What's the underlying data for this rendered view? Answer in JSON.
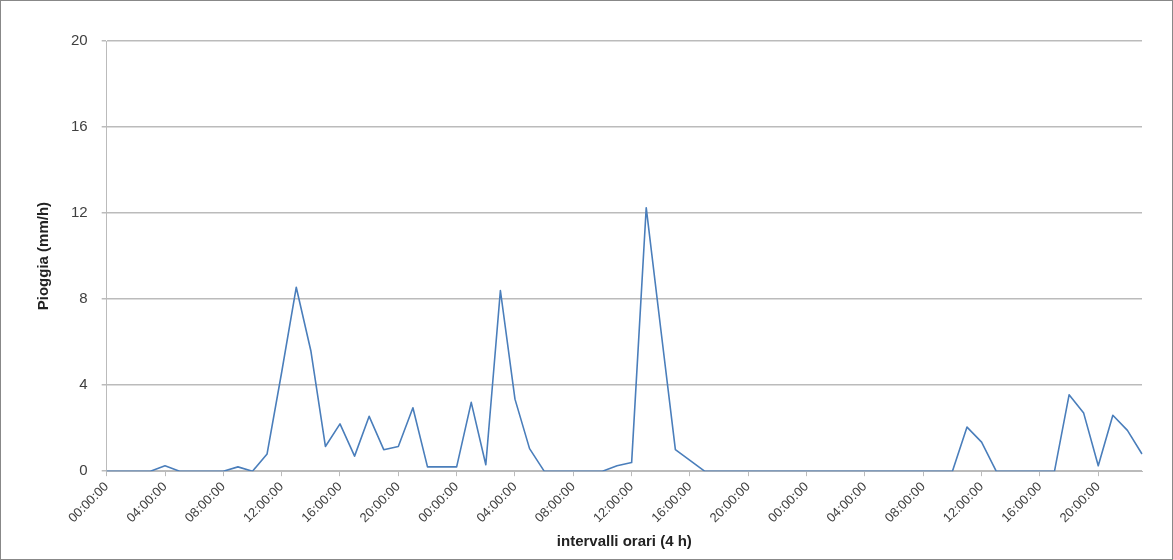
{
  "chart_data": {
    "type": "line",
    "xlabel": "intervalli orari (4 h)",
    "ylabel": "Pioggia (mm/h)",
    "categories": [
      "00:00:00",
      null,
      null,
      null,
      "04:00:00",
      null,
      null,
      null,
      "08:00:00",
      null,
      null,
      null,
      "12:00:00",
      null,
      null,
      null,
      "16:00:00",
      null,
      null,
      null,
      "20:00:00",
      null,
      null,
      null,
      "00:00:00",
      null,
      null,
      null,
      "04:00:00",
      null,
      null,
      null,
      "08:00:00",
      null,
      null,
      null,
      "12:00:00",
      null,
      null,
      null,
      "16:00:00",
      null,
      null,
      null,
      "20:00:00",
      null,
      null,
      null,
      "00:00:00",
      null,
      null,
      null,
      "04:00:00",
      null,
      null,
      null,
      "08:00:00",
      null,
      null,
      null,
      "12:00:00",
      null,
      null,
      null,
      "16:00:00",
      null,
      null,
      null,
      "20:00:00",
      null,
      null,
      null
    ],
    "series": [
      {
        "color": "#4a7ebb",
        "values": [
          0,
          0,
          0,
          0,
          0.25,
          0,
          0,
          0,
          0,
          0.2,
          0,
          0.8,
          4.6,
          8.55,
          5.6,
          1.15,
          2.2,
          0.7,
          2.55,
          1,
          1.15,
          2.95,
          0.2,
          0.2,
          0.2,
          3.2,
          0.3,
          8.4,
          3.35,
          1.05,
          0,
          0,
          0,
          0,
          0,
          0.25,
          0.4,
          12.25,
          6.6,
          1,
          0.5,
          0,
          0,
          0,
          0,
          0,
          0,
          0,
          0,
          0,
          0,
          0,
          0,
          0,
          0,
          0,
          0,
          0,
          0,
          2.05,
          1.35,
          0,
          0,
          0,
          0,
          0,
          3.55,
          2.7,
          0.25,
          2.6,
          1.9,
          0.8
        ]
      }
    ],
    "ylim": [
      0,
      20
    ],
    "yticks": [
      0,
      4,
      8,
      12,
      16,
      20
    ],
    "grid": "y",
    "legend": false,
    "marker": "none",
    "line_style": "solid"
  }
}
